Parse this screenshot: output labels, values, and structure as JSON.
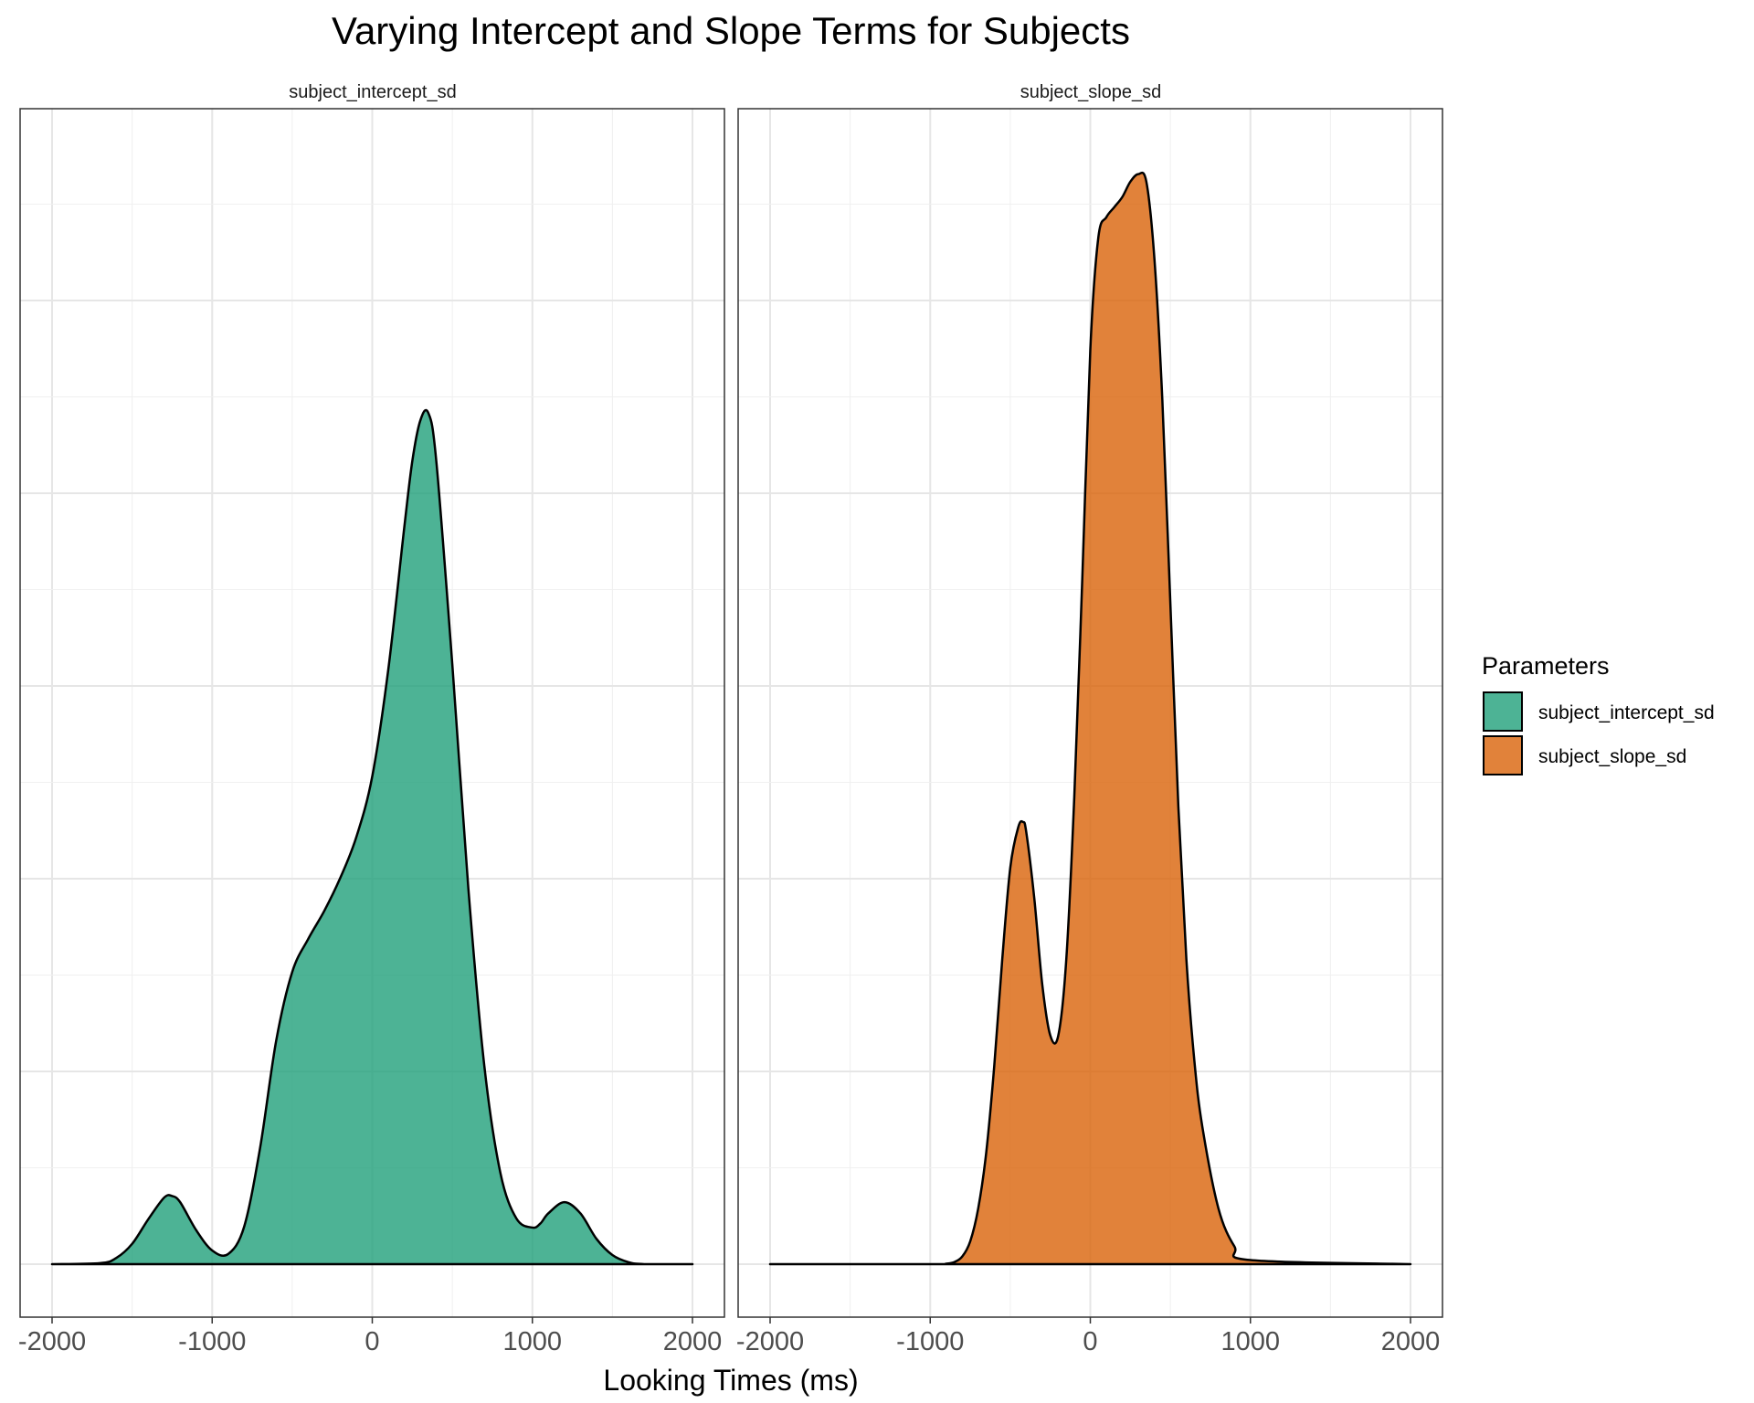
{
  "chart_data": {
    "type": "area",
    "title": "Varying Intercept and Slope Terms for Subjects",
    "xlabel": "Looking Times (ms)",
    "ylabel": "",
    "xlim": [
      -2000,
      2000
    ],
    "x_ticks": [
      -2000,
      -1000,
      0,
      1000,
      2000
    ],
    "ylim": [
      0,
      1
    ],
    "y_tick_labels": "none",
    "grid": true,
    "legend": {
      "title": "Parameters",
      "placement": "right",
      "entries": [
        "subject_intercept_sd",
        "subject_slope_sd"
      ]
    },
    "panels": [
      {
        "strip": "subject_intercept_sd",
        "name": "subject_intercept_sd",
        "color": "#1b9e77",
        "x": [
          -2000,
          -1700,
          -1600,
          -1500,
          -1400,
          -1300,
          -1250,
          -1200,
          -1100,
          -1000,
          -900,
          -800,
          -700,
          -600,
          -500,
          -400,
          -300,
          -200,
          -100,
          0,
          100,
          200,
          250,
          300,
          350,
          400,
          500,
          600,
          700,
          800,
          900,
          1000,
          1050,
          1100,
          1200,
          1300,
          1400,
          1500,
          1600,
          1700,
          2000
        ],
        "density": [
          0.0,
          0.002,
          0.012,
          0.04,
          0.088,
          0.131,
          0.134,
          0.122,
          0.067,
          0.027,
          0.02,
          0.074,
          0.23,
          0.44,
          0.575,
          0.64,
          0.695,
          0.76,
          0.84,
          0.96,
          1.17,
          1.45,
          1.58,
          1.66,
          1.675,
          1.58,
          1.18,
          0.74,
          0.39,
          0.18,
          0.09,
          0.072,
          0.08,
          0.1,
          0.122,
          0.1,
          0.05,
          0.018,
          0.004,
          0.0,
          0.0
        ]
      },
      {
        "strip": "subject_slope_sd",
        "name": "subject_slope_sd",
        "color": "#d95f02",
        "x": [
          -2000,
          -1000,
          -900,
          -850,
          -800,
          -750,
          -700,
          -650,
          -600,
          -550,
          -500,
          -450,
          -420,
          -400,
          -350,
          -300,
          -250,
          -200,
          -150,
          -100,
          -50,
          0,
          50,
          100,
          150,
          200,
          250,
          300,
          350,
          400,
          450,
          500,
          550,
          600,
          650,
          700,
          800,
          900,
          1000,
          2000
        ],
        "density": [
          0.0,
          0.0,
          0.001,
          0.004,
          0.015,
          0.045,
          0.11,
          0.22,
          0.39,
          0.6,
          0.78,
          0.86,
          0.87,
          0.85,
          0.72,
          0.55,
          0.45,
          0.45,
          0.6,
          0.92,
          1.35,
          1.8,
          2.02,
          2.06,
          2.08,
          2.1,
          2.13,
          2.145,
          2.13,
          1.98,
          1.7,
          1.3,
          0.9,
          0.6,
          0.4,
          0.27,
          0.11,
          0.035,
          0.008,
          0.0
        ]
      }
    ]
  }
}
